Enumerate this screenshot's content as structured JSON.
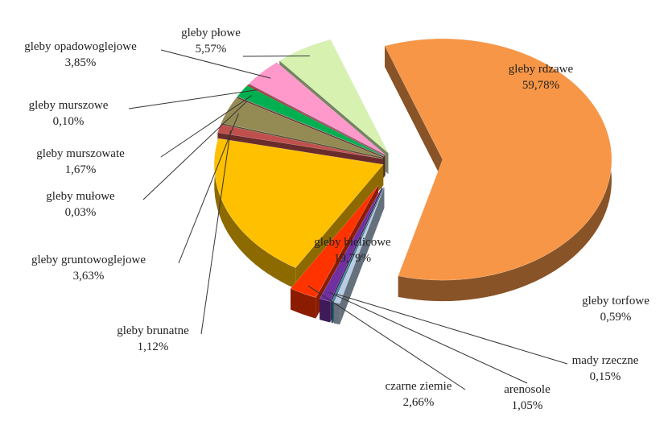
{
  "chart_data": {
    "type": "pie",
    "categories": [
      "gleby rdzawe",
      "gleby torfowe",
      "mady rzeczne",
      "arenosole",
      "czarne ziemie",
      "gleby bielicowe",
      "gleby brunatne",
      "gleby gruntowoglejowe",
      "gleby mułowe",
      "gleby murszowate",
      "gleby murszowe",
      "gleby opadowoglejowe",
      "gleby płowe"
    ],
    "values": [
      59.78,
      0.59,
      0.15,
      1.05,
      2.66,
      19.79,
      1.12,
      3.63,
      0.03,
      1.67,
      0.1,
      3.85,
      5.57
    ],
    "value_labels": [
      "59,78%",
      "0,59%",
      "0,15%",
      "1,05%",
      "2,66%",
      "19,79%",
      "1,12%",
      "3,63%",
      "0,03%",
      "1,67%",
      "0,10%",
      "3,85%",
      "5,57%"
    ],
    "colors": [
      "#f79646",
      "#b8cce4",
      "#31859c",
      "#7030a0",
      "#ff3300",
      "#ffc000",
      "#c0504d",
      "#948a54",
      "#953735",
      "#00b050",
      "#c00000",
      "#ff99cc",
      "#d7f2b0"
    ]
  }
}
